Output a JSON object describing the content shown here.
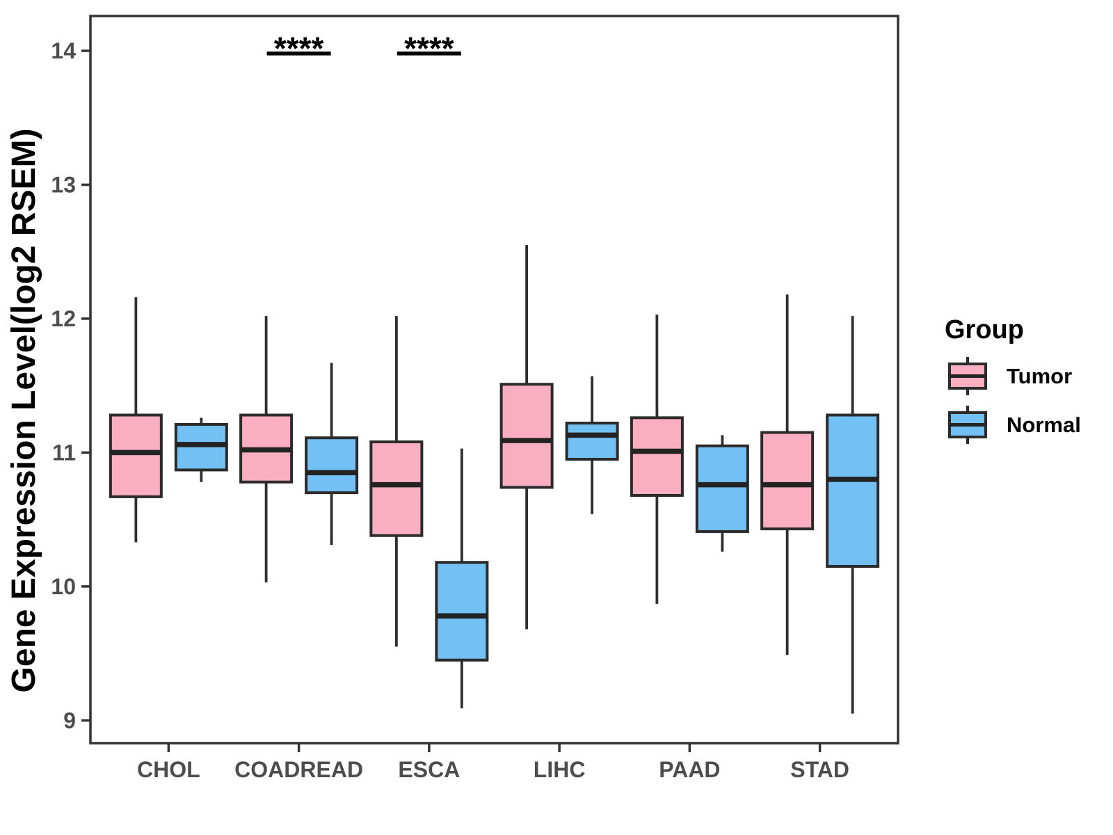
{
  "chart_data": {
    "type": "boxplot",
    "title": "",
    "xlabel": "",
    "ylabel": "Gene Expression Level(log2 RSEM)",
    "ylim": [
      8.83,
      14.26
    ],
    "yticks": [
      9,
      10,
      11,
      12,
      13,
      14
    ],
    "categories": [
      "CHOL",
      "COADREAD",
      "ESCA",
      "LIHC",
      "PAAD",
      "STAD"
    ],
    "grid": false,
    "legend": {
      "title": "Group",
      "position": "right"
    },
    "series": [
      {
        "name": "Tumor",
        "fill_color": "#FAAEC2",
        "boxes": [
          {
            "category": "CHOL",
            "min": 10.33,
            "q1": 10.67,
            "median": 11.0,
            "q3": 11.28,
            "max": 12.16
          },
          {
            "category": "COADREAD",
            "min": 10.03,
            "q1": 10.78,
            "median": 11.02,
            "q3": 11.28,
            "max": 12.02
          },
          {
            "category": "ESCA",
            "min": 9.55,
            "q1": 10.38,
            "median": 10.76,
            "q3": 11.08,
            "max": 12.02
          },
          {
            "category": "LIHC",
            "min": 9.68,
            "q1": 10.74,
            "median": 11.09,
            "q3": 11.51,
            "max": 12.55
          },
          {
            "category": "PAAD",
            "min": 9.87,
            "q1": 10.68,
            "median": 11.01,
            "q3": 11.26,
            "max": 12.03
          },
          {
            "category": "STAD",
            "min": 9.49,
            "q1": 10.43,
            "median": 10.76,
            "q3": 11.15,
            "max": 12.18
          }
        ]
      },
      {
        "name": "Normal",
        "fill_color": "#73C0F5",
        "boxes": [
          {
            "category": "CHOL",
            "min": 10.78,
            "q1": 10.87,
            "median": 11.06,
            "q3": 11.21,
            "max": 11.26
          },
          {
            "category": "COADREAD",
            "min": 10.31,
            "q1": 10.7,
            "median": 10.85,
            "q3": 11.11,
            "max": 11.67
          },
          {
            "category": "ESCA",
            "min": 9.09,
            "q1": 9.45,
            "median": 9.78,
            "q3": 10.18,
            "max": 11.03
          },
          {
            "category": "LIHC",
            "min": 10.54,
            "q1": 10.95,
            "median": 11.13,
            "q3": 11.22,
            "max": 11.57
          },
          {
            "category": "PAAD",
            "min": 10.26,
            "q1": 10.41,
            "median": 10.76,
            "q3": 11.05,
            "max": 11.13
          },
          {
            "category": "STAD",
            "min": 9.05,
            "q1": 10.15,
            "median": 10.8,
            "q3": 11.28,
            "max": 12.02
          }
        ]
      }
    ],
    "annotations": [
      {
        "category": "COADREAD",
        "label": "****",
        "bar_y": 13.98
      },
      {
        "category": "ESCA",
        "label": "****",
        "bar_y": 13.98
      }
    ],
    "colors": {
      "panel_border": "#333333",
      "box_stroke": "#2B2B2B",
      "median_stroke": "#232323",
      "whisker_stroke": "#2E2E2E",
      "tick_mark": "#333333",
      "tick_label": "#4D4D4D",
      "axis_title": "#000000",
      "annotation": "#000000",
      "legend_text": "#000000"
    }
  }
}
